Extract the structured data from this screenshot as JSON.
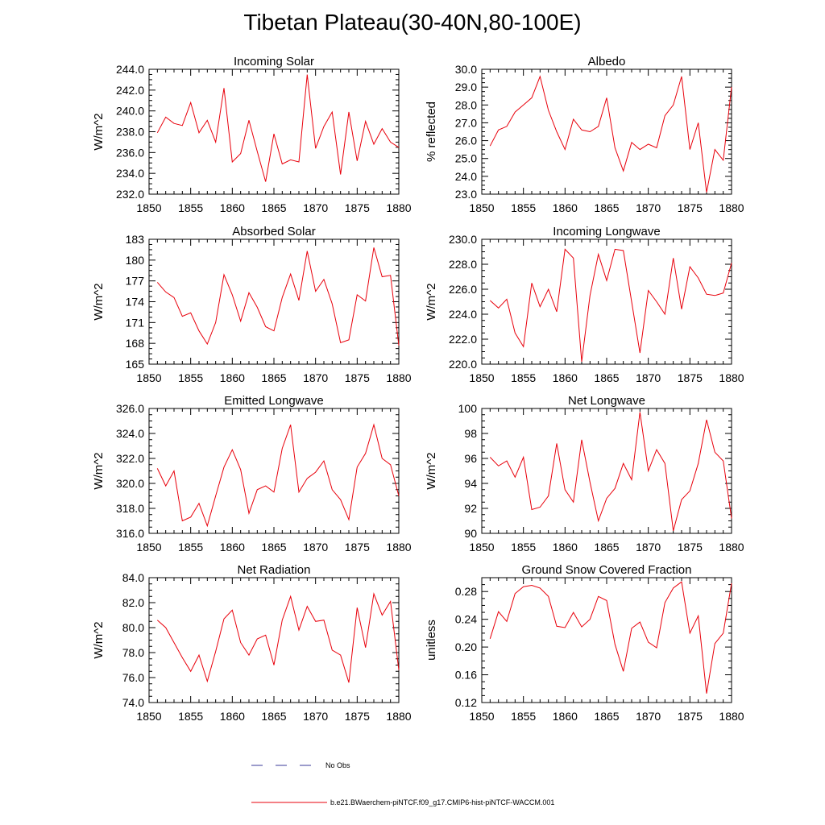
{
  "title": "Tibetan Plateau(30-40N,80-100E)",
  "legend": {
    "obs": {
      "label": "No Obs",
      "color": "#3a3a9a"
    },
    "model": {
      "label": "b.e21.BWaerchem-piNTCF.f09_g17.CMIP6-hist-piNTCF-WACCM.001",
      "color": "#e8000b"
    }
  },
  "chart_data": [
    {
      "type": "line",
      "title": "Incoming Solar",
      "ylabel": "W/m^2",
      "xlim": [
        1850,
        1880
      ],
      "ylim": [
        232,
        244
      ],
      "xticks": [
        "1850",
        "1855",
        "1860",
        "1865",
        "1870",
        "1875",
        "1880"
      ],
      "yticks": [
        "232.0",
        "234.0",
        "236.0",
        "238.0",
        "240.0",
        "242.0",
        "244.0"
      ],
      "x": [
        1851,
        1852,
        1853,
        1854,
        1855,
        1856,
        1857,
        1858,
        1859,
        1860,
        1861,
        1862,
        1863,
        1864,
        1865,
        1866,
        1867,
        1868,
        1869,
        1870,
        1871,
        1872,
        1873,
        1874,
        1875,
        1876,
        1877,
        1878,
        1879,
        1880
      ],
      "series": [
        {
          "color": "#e8000b",
          "values": [
            237.9,
            239.4,
            238.8,
            238.6,
            240.8,
            237.9,
            239.1,
            237.0,
            242.2,
            235.1,
            235.9,
            239.1,
            236.1,
            233.2,
            237.8,
            234.9,
            235.3,
            235.1,
            243.5,
            236.4,
            238.5,
            239.9,
            233.9,
            239.9,
            235.2,
            239.0,
            236.8,
            238.3,
            237.0,
            236.5
          ]
        }
      ]
    },
    {
      "type": "line",
      "title": "Albedo",
      "ylabel": "% reflected",
      "xlim": [
        1850,
        1880
      ],
      "ylim": [
        23,
        30
      ],
      "xticks": [
        "1850",
        "1855",
        "1860",
        "1865",
        "1870",
        "1875",
        "1880"
      ],
      "yticks": [
        "23.0",
        "24.0",
        "25.0",
        "26.0",
        "27.0",
        "28.0",
        "29.0",
        "30.0"
      ],
      "x": [
        1851,
        1852,
        1853,
        1854,
        1855,
        1856,
        1857,
        1858,
        1859,
        1860,
        1861,
        1862,
        1863,
        1864,
        1865,
        1866,
        1867,
        1868,
        1869,
        1870,
        1871,
        1872,
        1873,
        1874,
        1875,
        1876,
        1877,
        1878,
        1879,
        1880
      ],
      "series": [
        {
          "color": "#e8000b",
          "values": [
            25.7,
            26.6,
            26.8,
            27.6,
            28.0,
            28.4,
            29.6,
            27.7,
            26.5,
            25.5,
            27.2,
            26.6,
            26.5,
            26.8,
            28.4,
            25.6,
            24.3,
            25.9,
            25.5,
            25.8,
            25.6,
            27.4,
            28.0,
            29.6,
            25.5,
            27.0,
            23.1,
            25.5,
            24.9,
            29.0
          ]
        }
      ]
    },
    {
      "type": "line",
      "title": "Absorbed Solar",
      "ylabel": "W/m^2",
      "xlim": [
        1850,
        1880
      ],
      "ylim": [
        165,
        183
      ],
      "xticks": [
        "1850",
        "1855",
        "1860",
        "1865",
        "1870",
        "1875",
        "1880"
      ],
      "yticks": [
        "165",
        "168",
        "171",
        "174",
        "177",
        "180",
        "183"
      ],
      "x": [
        1851,
        1852,
        1853,
        1854,
        1855,
        1856,
        1857,
        1858,
        1859,
        1860,
        1861,
        1862,
        1863,
        1864,
        1865,
        1866,
        1867,
        1868,
        1869,
        1870,
        1871,
        1872,
        1873,
        1874,
        1875,
        1876,
        1877,
        1878,
        1879,
        1880
      ],
      "series": [
        {
          "color": "#e8000b",
          "values": [
            176.8,
            175.4,
            174.6,
            171.9,
            172.4,
            169.8,
            167.9,
            171.0,
            177.9,
            175.0,
            171.2,
            175.3,
            173.2,
            170.4,
            169.8,
            174.6,
            178.0,
            174.2,
            181.3,
            175.5,
            177.2,
            173.7,
            168.1,
            168.5,
            175.0,
            174.1,
            181.8,
            177.6,
            177.8,
            167.7
          ]
        }
      ]
    },
    {
      "type": "line",
      "title": "Incoming Longwave",
      "ylabel": "W/m^2",
      "xlim": [
        1850,
        1880
      ],
      "ylim": [
        220,
        230
      ],
      "xticks": [
        "1850",
        "1855",
        "1860",
        "1865",
        "1870",
        "1875",
        "1880"
      ],
      "yticks": [
        "220.0",
        "222.0",
        "224.0",
        "226.0",
        "228.0",
        "230.0"
      ],
      "x": [
        1851,
        1852,
        1853,
        1854,
        1855,
        1856,
        1857,
        1858,
        1859,
        1860,
        1861,
        1862,
        1863,
        1864,
        1865,
        1866,
        1867,
        1868,
        1869,
        1870,
        1871,
        1872,
        1873,
        1874,
        1875,
        1876,
        1877,
        1878,
        1879,
        1880
      ],
      "series": [
        {
          "color": "#e8000b",
          "values": [
            225.1,
            224.5,
            225.2,
            222.5,
            221.4,
            226.5,
            224.6,
            226.0,
            224.2,
            229.2,
            228.5,
            220.2,
            225.5,
            228.8,
            226.7,
            229.2,
            229.1,
            225.0,
            220.9,
            225.9,
            225.0,
            224.0,
            228.5,
            224.4,
            227.8,
            226.9,
            225.6,
            225.5,
            225.7,
            228.1
          ]
        }
      ]
    },
    {
      "type": "line",
      "title": "Emitted Longwave",
      "ylabel": "W/m^2",
      "xlim": [
        1850,
        1880
      ],
      "ylim": [
        316,
        326
      ],
      "xticks": [
        "1850",
        "1855",
        "1860",
        "1865",
        "1870",
        "1875",
        "1880"
      ],
      "yticks": [
        "316.0",
        "318.0",
        "320.0",
        "322.0",
        "324.0",
        "326.0"
      ],
      "x": [
        1851,
        1852,
        1853,
        1854,
        1855,
        1856,
        1857,
        1858,
        1859,
        1860,
        1861,
        1862,
        1863,
        1864,
        1865,
        1866,
        1867,
        1868,
        1869,
        1870,
        1871,
        1872,
        1873,
        1874,
        1875,
        1876,
        1877,
        1878,
        1879,
        1880
      ],
      "series": [
        {
          "color": "#e8000b",
          "values": [
            321.2,
            319.8,
            321.0,
            317.0,
            317.3,
            318.4,
            316.6,
            319.0,
            321.3,
            322.7,
            321.1,
            317.6,
            319.5,
            319.8,
            319.3,
            322.8,
            324.7,
            319.3,
            320.4,
            320.9,
            321.8,
            319.5,
            318.7,
            317.1,
            321.3,
            322.4,
            324.7,
            322.0,
            321.5,
            319.0
          ]
        }
      ]
    },
    {
      "type": "line",
      "title": "Net Longwave",
      "ylabel": "W/m^2",
      "xlim": [
        1850,
        1880
      ],
      "ylim": [
        90,
        100
      ],
      "xticks": [
        "1850",
        "1855",
        "1860",
        "1865",
        "1870",
        "1875",
        "1880"
      ],
      "yticks": [
        "90",
        "92",
        "94",
        "96",
        "98",
        "100"
      ],
      "x": [
        1851,
        1852,
        1853,
        1854,
        1855,
        1856,
        1857,
        1858,
        1859,
        1860,
        1861,
        1862,
        1863,
        1864,
        1865,
        1866,
        1867,
        1868,
        1869,
        1870,
        1871,
        1872,
        1873,
        1874,
        1875,
        1876,
        1877,
        1878,
        1879,
        1880
      ],
      "series": [
        {
          "color": "#e8000b",
          "values": [
            96.1,
            95.4,
            95.8,
            94.5,
            96.1,
            91.9,
            92.1,
            93.0,
            97.2,
            93.5,
            92.5,
            97.5,
            94.1,
            91.0,
            92.8,
            93.6,
            95.6,
            94.3,
            99.7,
            95.0,
            96.7,
            95.6,
            90.2,
            92.7,
            93.4,
            95.6,
            99.1,
            96.5,
            95.8,
            91.2
          ]
        }
      ]
    },
    {
      "type": "line",
      "title": "Net Radiation",
      "ylabel": "W/m^2",
      "xlim": [
        1850,
        1880
      ],
      "ylim": [
        74,
        84
      ],
      "xticks": [
        "1850",
        "1855",
        "1860",
        "1865",
        "1870",
        "1875",
        "1880"
      ],
      "yticks": [
        "74.0",
        "76.0",
        "78.0",
        "80.0",
        "82.0",
        "84.0"
      ],
      "x": [
        1851,
        1852,
        1853,
        1854,
        1855,
        1856,
        1857,
        1858,
        1859,
        1860,
        1861,
        1862,
        1863,
        1864,
        1865,
        1866,
        1867,
        1868,
        1869,
        1870,
        1871,
        1872,
        1873,
        1874,
        1875,
        1876,
        1877,
        1878,
        1879,
        1880
      ],
      "series": [
        {
          "color": "#e8000b",
          "values": [
            80.6,
            80.0,
            78.8,
            77.6,
            76.5,
            77.8,
            75.7,
            78.1,
            80.7,
            81.4,
            78.8,
            77.8,
            79.1,
            79.4,
            77.0,
            80.6,
            82.5,
            79.8,
            81.7,
            80.5,
            80.6,
            78.2,
            77.8,
            75.6,
            81.6,
            78.4,
            82.7,
            81.0,
            82.1,
            76.6
          ]
        }
      ]
    },
    {
      "type": "line",
      "title": "Ground Snow Covered Fraction",
      "ylabel": "unitless",
      "xlim": [
        1850,
        1880
      ],
      "ylim": [
        0.12,
        0.3
      ],
      "xticks": [
        "1850",
        "1855",
        "1860",
        "1865",
        "1870",
        "1875",
        "1880"
      ],
      "yticks": [
        "0.12",
        "0.16",
        "0.20",
        "0.24",
        "0.28"
      ],
      "x": [
        1851,
        1852,
        1853,
        1854,
        1855,
        1856,
        1857,
        1858,
        1859,
        1860,
        1861,
        1862,
        1863,
        1864,
        1865,
        1866,
        1867,
        1868,
        1869,
        1870,
        1871,
        1872,
        1873,
        1874,
        1875,
        1876,
        1877,
        1878,
        1879,
        1880
      ],
      "series": [
        {
          "color": "#e8000b",
          "values": [
            0.212,
            0.251,
            0.237,
            0.277,
            0.287,
            0.289,
            0.285,
            0.273,
            0.23,
            0.228,
            0.25,
            0.229,
            0.24,
            0.273,
            0.267,
            0.204,
            0.165,
            0.227,
            0.236,
            0.207,
            0.199,
            0.264,
            0.285,
            0.294,
            0.22,
            0.245,
            0.133,
            0.205,
            0.22,
            0.292
          ]
        }
      ]
    }
  ]
}
